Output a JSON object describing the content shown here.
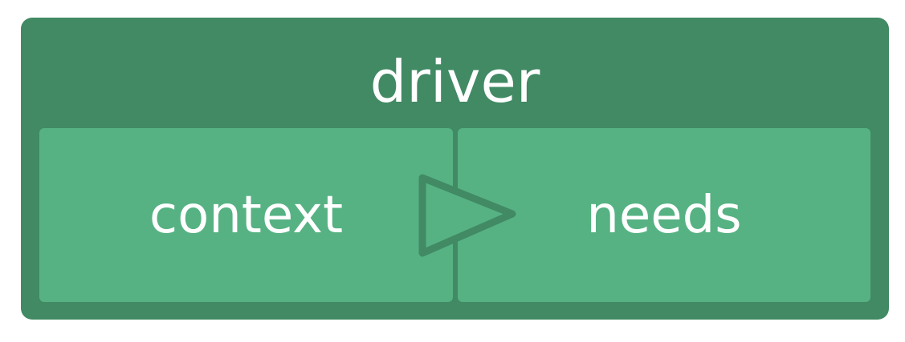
{
  "diagram": {
    "container": {
      "label": "driver",
      "color": "#418a64"
    },
    "boxes": [
      {
        "id": "context",
        "label": "context",
        "color": "#56b283"
      },
      {
        "id": "needs",
        "label": "needs",
        "color": "#56b283"
      }
    ],
    "connector": {
      "from": "context",
      "to": "needs",
      "shape": "triangle-arrow",
      "color": "#418a64"
    }
  }
}
